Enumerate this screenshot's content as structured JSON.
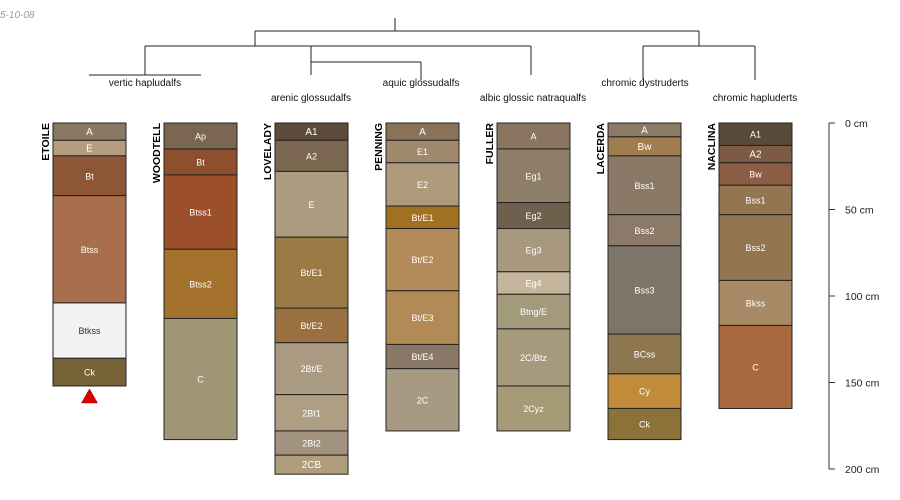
{
  "header": {
    "date_stamp": "5-10-08"
  },
  "depth_scale": {
    "unit": "cm",
    "ticks": [
      {
        "value": 0,
        "label": "0 cm"
      },
      {
        "value": 50,
        "label": "50 cm"
      },
      {
        "value": 100,
        "label": "100 cm"
      },
      {
        "value": 150,
        "label": "150 cm"
      },
      {
        "value": 200,
        "label": "200 cm"
      }
    ]
  },
  "marker": {
    "profile": "ETOILE",
    "shape": "red-triangle",
    "color": "#dd0000"
  },
  "profiles": [
    {
      "name": "ETOILE",
      "taxonomy": "vertic hapludalfs",
      "horizons": [
        {
          "name": "A",
          "top": 0,
          "bottom": 10,
          "color": "#8a7862"
        },
        {
          "name": "E",
          "top": 10,
          "bottom": 19,
          "color": "#b49d7f"
        },
        {
          "name": "Bt",
          "top": 19,
          "bottom": 42,
          "color": "#8d5737"
        },
        {
          "name": "Btss",
          "top": 42,
          "bottom": 104,
          "color": "#a96e4b"
        },
        {
          "name": "Btkss",
          "top": 104,
          "bottom": 136,
          "color": "#f2f2f2"
        },
        {
          "name": "Ck",
          "top": 136,
          "bottom": 152,
          "color": "#776136"
        }
      ]
    },
    {
      "name": "WOODTELL",
      "taxonomy": "",
      "horizons": [
        {
          "name": "Ap",
          "top": 0,
          "bottom": 15,
          "color": "#7a6651"
        },
        {
          "name": "Bt",
          "top": 15,
          "bottom": 30,
          "color": "#8e4f2d"
        },
        {
          "name": "Btss1",
          "top": 30,
          "bottom": 73,
          "color": "#9c4f2b"
        },
        {
          "name": "Btss2",
          "top": 73,
          "bottom": 113,
          "color": "#a5722e"
        },
        {
          "name": "C",
          "top": 113,
          "bottom": 183,
          "color": "#a09575"
        }
      ]
    },
    {
      "name": "LOVELADY",
      "taxonomy": "arenic glossudalfs",
      "horizons": [
        {
          "name": "A1",
          "top": 0,
          "bottom": 10,
          "color": "#5d4c39"
        },
        {
          "name": "A2",
          "top": 10,
          "bottom": 28,
          "color": "#7a6651"
        },
        {
          "name": "E",
          "top": 28,
          "bottom": 66,
          "color": "#ac9c7f"
        },
        {
          "name": "Bt/E1",
          "top": 66,
          "bottom": 107,
          "color": "#9b7a46"
        },
        {
          "name": "Bt/E2",
          "top": 107,
          "bottom": 127,
          "color": "#9a7040"
        },
        {
          "name": "2Bt/E",
          "top": 127,
          "bottom": 157,
          "color": "#ab9a82"
        },
        {
          "name": "2Bt1",
          "top": 157,
          "bottom": 178,
          "color": "#ad9e84"
        },
        {
          "name": "2Bt2",
          "top": 178,
          "bottom": 192,
          "color": "#a19380"
        },
        {
          "name": "2CB",
          "top": 192,
          "bottom": 203,
          "color": "#b09d7c"
        }
      ]
    },
    {
      "name": "PENNING",
      "taxonomy": "aquic glossudalfs",
      "horizons": [
        {
          "name": "A",
          "top": 0,
          "bottom": 10,
          "color": "#8a7259"
        },
        {
          "name": "E1",
          "top": 10,
          "bottom": 23,
          "color": "#a0896c"
        },
        {
          "name": "E2",
          "top": 23,
          "bottom": 48,
          "color": "#b09a7c"
        },
        {
          "name": "Bt/E1",
          "top": 48,
          "bottom": 61,
          "color": "#a17122"
        },
        {
          "name": "Bt/E2",
          "top": 61,
          "bottom": 97,
          "color": "#b38b58"
        },
        {
          "name": "Bt/E3",
          "top": 97,
          "bottom": 128,
          "color": "#b28a55"
        },
        {
          "name": "Bt/E4",
          "top": 128,
          "bottom": 142,
          "color": "#8a7866"
        },
        {
          "name": "2C",
          "top": 142,
          "bottom": 178,
          "color": "#a89a82"
        }
      ]
    },
    {
      "name": "FULLER",
      "taxonomy": "albic glossic natraqualfs",
      "horizons": [
        {
          "name": "A",
          "top": 0,
          "bottom": 15,
          "color": "#8a7561"
        },
        {
          "name": "Eg1",
          "top": 15,
          "bottom": 46,
          "color": "#8e7e69"
        },
        {
          "name": "Eg2",
          "top": 46,
          "bottom": 61,
          "color": "#6f604d"
        },
        {
          "name": "Eg3",
          "top": 61,
          "bottom": 86,
          "color": "#a99880"
        },
        {
          "name": "Eg4",
          "top": 86,
          "bottom": 99,
          "color": "#c5b59c"
        },
        {
          "name": "Btng/E",
          "top": 99,
          "bottom": 119,
          "color": "#a39a7b"
        },
        {
          "name": "2C/Btz",
          "top": 119,
          "bottom": 152,
          "color": "#a59b7c"
        },
        {
          "name": "2Cyz",
          "top": 152,
          "bottom": 178,
          "color": "#a69b76"
        }
      ]
    },
    {
      "name": "LACERDA",
      "taxonomy": "chromic dystruderts",
      "horizons": [
        {
          "name": "A",
          "top": 0,
          "bottom": 8,
          "color": "#8a7a66"
        },
        {
          "name": "Bw",
          "top": 8,
          "bottom": 19,
          "color": "#a07d4f"
        },
        {
          "name": "Bss1",
          "top": 19,
          "bottom": 53,
          "color": "#8a7966"
        },
        {
          "name": "Bss2",
          "top": 53,
          "bottom": 71,
          "color": "#8b7a67"
        },
        {
          "name": "Bss3",
          "top": 71,
          "bottom": 122,
          "color": "#7e7569"
        },
        {
          "name": "BCss",
          "top": 122,
          "bottom": 145,
          "color": "#8d7650"
        },
        {
          "name": "Cy",
          "top": 145,
          "bottom": 165,
          "color": "#c08b3a"
        },
        {
          "name": "Ck",
          "top": 165,
          "bottom": 183,
          "color": "#8c7138"
        }
      ]
    },
    {
      "name": "NACLINA",
      "taxonomy": "chromic hapluderts",
      "horizons": [
        {
          "name": "A1",
          "top": 0,
          "bottom": 13,
          "color": "#5a4a3a"
        },
        {
          "name": "A2",
          "top": 13,
          "bottom": 23,
          "color": "#7c5a44"
        },
        {
          "name": "Bw",
          "top": 23,
          "bottom": 36,
          "color": "#8a5d44"
        },
        {
          "name": "Bss1",
          "top": 36,
          "bottom": 53,
          "color": "#937651"
        },
        {
          "name": "Bss2",
          "top": 53,
          "bottom": 91,
          "color": "#937550"
        },
        {
          "name": "Bkss",
          "top": 91,
          "bottom": 117,
          "color": "#a78a65"
        },
        {
          "name": "C",
          "top": 117,
          "bottom": 165,
          "color": "#a8693e"
        }
      ]
    }
  ]
}
